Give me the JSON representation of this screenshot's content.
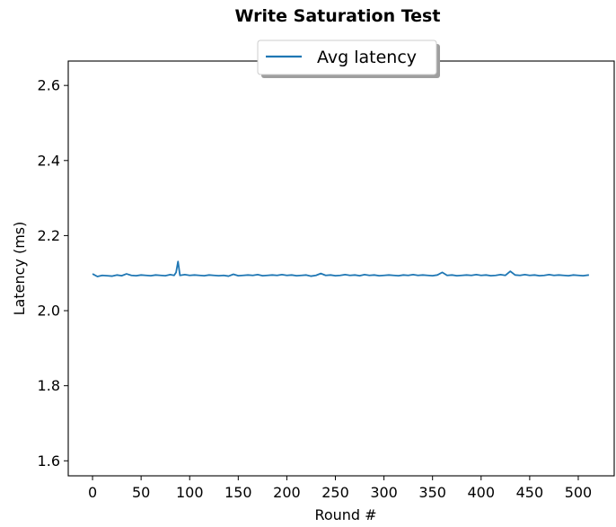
{
  "chart_data": {
    "type": "line",
    "title": "Write Saturation Test",
    "xlabel": "Round #",
    "ylabel": "Latency (ms)",
    "xlim": [
      -25,
      537
    ],
    "ylim": [
      1.56,
      2.665
    ],
    "xticks": [
      0,
      50,
      100,
      150,
      200,
      250,
      300,
      350,
      400,
      450,
      500
    ],
    "xtick_labels": [
      "0",
      "50",
      "100",
      "150",
      "200",
      "250",
      "300",
      "350",
      "400",
      "450",
      "500"
    ],
    "yticks": [
      1.6,
      1.8,
      2.0,
      2.2,
      2.4,
      2.6
    ],
    "ytick_labels": [
      "1.6",
      "1.8",
      "2.0",
      "2.2",
      "2.4",
      "2.6"
    ],
    "grid": false,
    "legend": {
      "position": "top-center"
    },
    "series": [
      {
        "name": "Avg latency",
        "color": "#1f77b4",
        "x": [
          0,
          5,
          10,
          15,
          20,
          25,
          30,
          35,
          40,
          45,
          50,
          55,
          60,
          65,
          70,
          75,
          80,
          84,
          86,
          88,
          90,
          95,
          100,
          105,
          110,
          115,
          120,
          125,
          130,
          135,
          140,
          145,
          150,
          155,
          160,
          165,
          170,
          175,
          180,
          185,
          190,
          195,
          200,
          205,
          210,
          215,
          220,
          225,
          230,
          235,
          240,
          245,
          250,
          255,
          260,
          265,
          270,
          275,
          280,
          285,
          290,
          295,
          300,
          305,
          310,
          315,
          320,
          325,
          330,
          335,
          340,
          345,
          350,
          355,
          360,
          365,
          370,
          375,
          380,
          385,
          390,
          395,
          400,
          405,
          410,
          415,
          420,
          425,
          430,
          435,
          440,
          445,
          450,
          455,
          460,
          465,
          470,
          475,
          480,
          485,
          490,
          495,
          500,
          505,
          511
        ],
        "y": [
          2.098,
          2.091,
          2.094,
          2.093,
          2.092,
          2.095,
          2.093,
          2.098,
          2.094,
          2.093,
          2.095,
          2.094,
          2.093,
          2.095,
          2.094,
          2.093,
          2.096,
          2.094,
          2.102,
          2.131,
          2.094,
          2.096,
          2.094,
          2.095,
          2.094,
          2.093,
          2.095,
          2.094,
          2.093,
          2.094,
          2.092,
          2.097,
          2.093,
          2.094,
          2.095,
          2.094,
          2.096,
          2.093,
          2.094,
          2.095,
          2.094,
          2.096,
          2.094,
          2.095,
          2.093,
          2.094,
          2.095,
          2.092,
          2.094,
          2.099,
          2.094,
          2.095,
          2.093,
          2.094,
          2.096,
          2.094,
          2.095,
          2.093,
          2.096,
          2.094,
          2.095,
          2.093,
          2.094,
          2.095,
          2.094,
          2.093,
          2.095,
          2.094,
          2.096,
          2.094,
          2.095,
          2.094,
          2.093,
          2.095,
          2.102,
          2.094,
          2.095,
          2.093,
          2.094,
          2.095,
          2.094,
          2.096,
          2.094,
          2.095,
          2.093,
          2.094,
          2.096,
          2.094,
          2.105,
          2.095,
          2.094,
          2.096,
          2.094,
          2.095,
          2.093,
          2.094,
          2.096,
          2.094,
          2.095,
          2.094,
          2.093,
          2.095,
          2.094,
          2.093,
          2.095
        ]
      }
    ]
  }
}
